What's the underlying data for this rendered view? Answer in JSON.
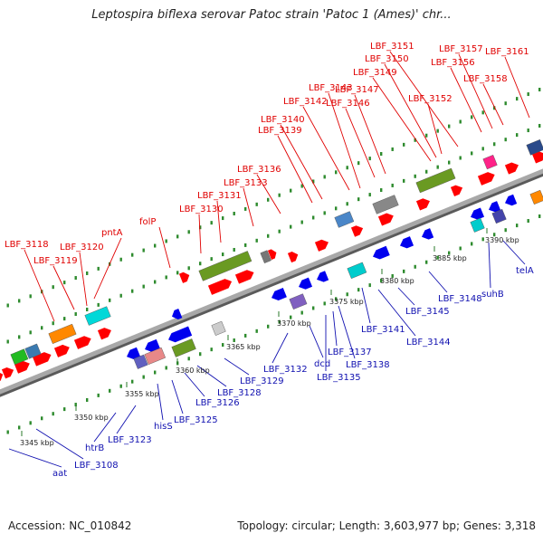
{
  "title": "Leptospira biflexa serovar Patoc strain 'Patoc 1 (Ames)' chr...",
  "footer": {
    "accession": "Accession: NC_010842",
    "summary": "Topology: circular; Length: 3,603,977 bp; Genes: 3,318"
  },
  "colors": {
    "backbone": "#8c8c8c",
    "forward_label": "#e00000",
    "reverse_label": "#1010b0",
    "forward_gene": "#ff0000",
    "reverse_gene": "#0000ee",
    "tick": "#2e8b2e"
  },
  "scale_ticks": [
    "3345 kbp",
    "3350 kbp",
    "3355 kbp",
    "3360 kbp",
    "3365 kbp",
    "3370 kbp",
    "3375 kbp",
    "3380 kbp",
    "3385 kbp",
    "3390 kbp"
  ],
  "forward_labels": [
    "LBF_3118",
    "LBF_3119",
    "LBF_3120",
    "pntA",
    "folP",
    "LBF_3130",
    "LBF_3131",
    "LBF_3133",
    "LBF_3136",
    "LBF_3139",
    "LBF_3140",
    "LBF_3142",
    "LBF_3143",
    "LBF_3146",
    "LBF_3147",
    "LBF_3149",
    "LBF_3150",
    "LBF_3151",
    "LBF_3152",
    "LBF_3156",
    "LBF_3157",
    "LBF_3158",
    "LBF_3161"
  ],
  "reverse_labels": [
    "aat",
    "LBF_3108",
    "htrB",
    "LBF_3123",
    "hisS",
    "LBF_3125",
    "LBF_3126",
    "LBF_3128",
    "LBF_3129",
    "LBF_3132",
    "dcd",
    "LBF_3135",
    "LBF_3137",
    "LBF_3138",
    "LBF_3141",
    "LBF_3144",
    "LBF_3145",
    "LBF_3148",
    "suhB",
    "telA"
  ]
}
